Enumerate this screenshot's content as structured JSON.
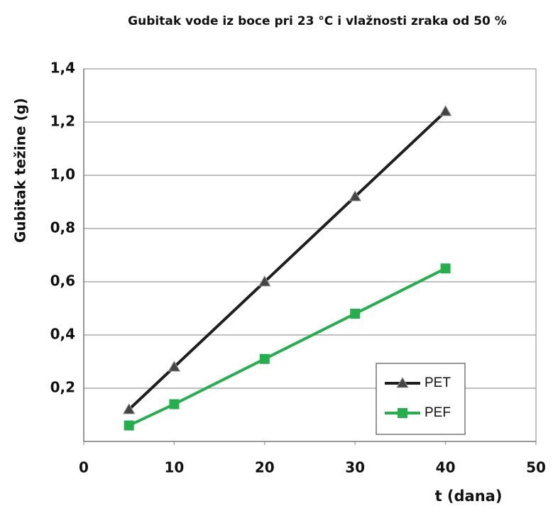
{
  "chart_data": {
    "type": "line",
    "title": "Gubitak vode iz boce pri 23 °C i vlažnosti zraka od 50 %",
    "y_label": "Gubitak težine (g)",
    "x_label": "t (dana)",
    "x": [
      5,
      10,
      20,
      30,
      40
    ],
    "series": [
      {
        "name": "PET",
        "color": "#1e1e1e",
        "marker": "triangle",
        "values": [
          0.12,
          0.28,
          0.6,
          0.92,
          1.24
        ]
      },
      {
        "name": "PEF",
        "color": "#22b04b",
        "marker": "square",
        "values": [
          0.06,
          0.14,
          0.31,
          0.48,
          0.65
        ]
      }
    ],
    "xlim": [
      0,
      50
    ],
    "xticks": [
      0,
      10,
      20,
      30,
      40,
      50
    ],
    "ylim": [
      0,
      1.4
    ],
    "yticks": [
      {
        "value": 0.2,
        "label": "0,2"
      },
      {
        "value": 0.4,
        "label": "0,4"
      },
      {
        "value": 0.6,
        "label": "0,6"
      },
      {
        "value": 0.8,
        "label": "0,8"
      },
      {
        "value": 1.0,
        "label": "1,0"
      },
      {
        "value": 1.2,
        "label": "1,2"
      },
      {
        "value": 1.4,
        "label": "1,4"
      }
    ],
    "grid": true,
    "legend": "lower right"
  }
}
